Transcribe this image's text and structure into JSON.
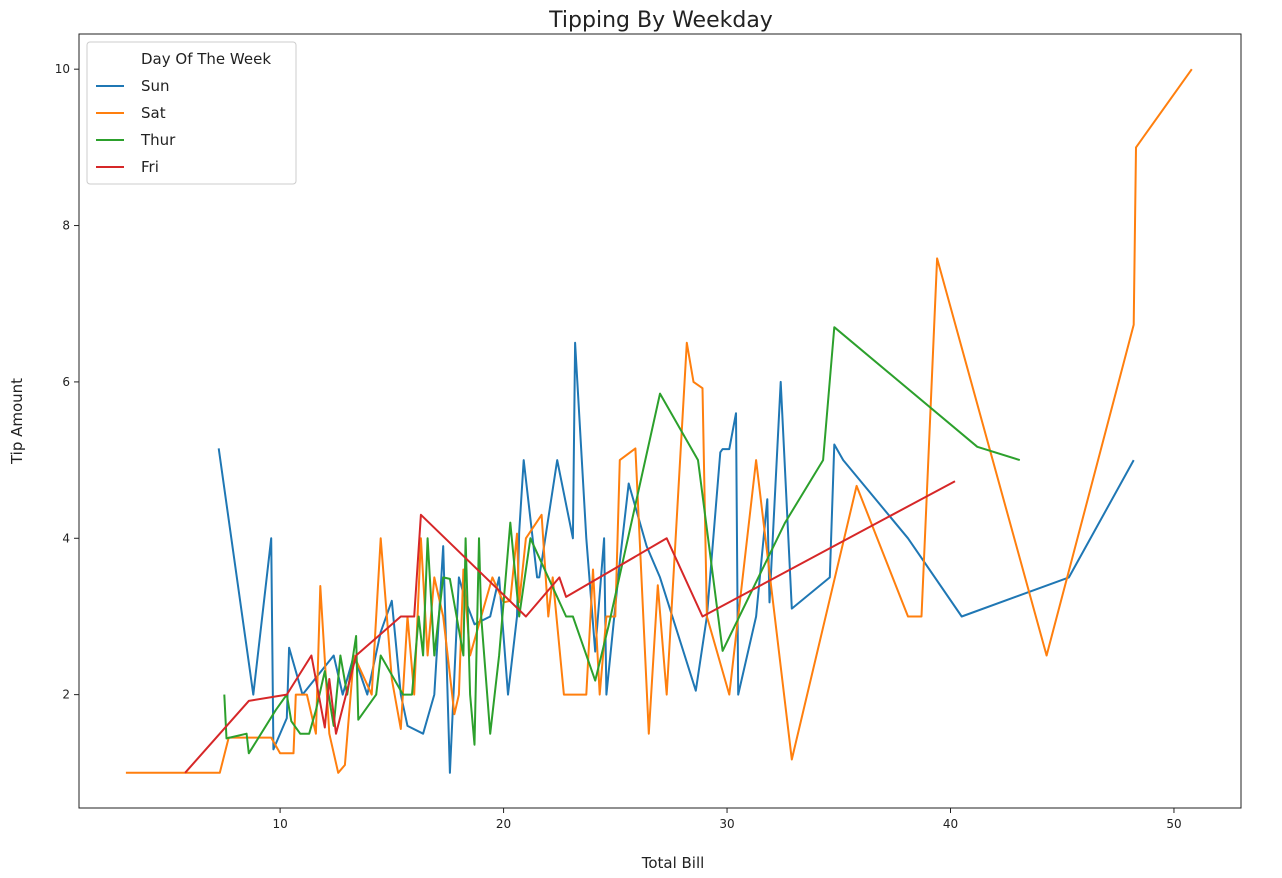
{
  "chart_data": {
    "type": "line",
    "title": "Tipping By Weekday",
    "xlabel": "Total Bill",
    "ylabel": "Tip Amount",
    "xlim": [
      1.0,
      53.0
    ],
    "ylim": [
      0.55,
      10.45
    ],
    "xticks": [
      10,
      20,
      30,
      40,
      50
    ],
    "yticks": [
      2,
      4,
      6,
      8,
      10
    ],
    "legend": {
      "title": "Day Of The Week",
      "placement": "top-left"
    },
    "series": [
      {
        "name": "Sun",
        "color": "#1f77b4",
        "x": [
          7.25,
          8.8,
          9.6,
          9.7,
          10.3,
          10.4,
          11.0,
          12.4,
          12.8,
          13.3,
          13.9,
          14.5,
          15.0,
          15.4,
          15.7,
          16.4,
          16.9,
          17.3,
          17.6,
          18.0,
          18.3,
          18.7,
          19.4,
          19.8,
          20.2,
          20.6,
          20.7,
          20.9,
          21.5,
          21.6,
          22.4,
          23.1,
          23.2,
          23.7,
          24.1,
          24.5,
          24.6,
          25.2,
          25.6,
          26.4,
          27.0,
          28.6,
          29.1,
          29.7,
          29.8,
          30.1,
          30.4,
          30.5,
          31.3,
          31.8,
          31.9,
          32.4,
          32.9,
          34.6,
          34.8,
          35.2,
          38.1,
          40.5,
          45.3,
          48.2
        ],
        "y": [
          5.15,
          2.0,
          4.0,
          1.3,
          1.7,
          2.6,
          2.0,
          2.5,
          2.0,
          2.5,
          2.0,
          2.8,
          3.2,
          2.0,
          1.6,
          1.5,
          2.0,
          3.9,
          1.0,
          3.5,
          3.2,
          2.9,
          3.0,
          3.5,
          2.0,
          3.0,
          4.08,
          5.0,
          3.5,
          3.5,
          5.0,
          4.0,
          6.5,
          4.0,
          2.55,
          4.0,
          2.0,
          3.7,
          4.7,
          3.9,
          3.5,
          2.05,
          3.0,
          5.1,
          5.14,
          5.14,
          5.6,
          2.0,
          3.0,
          4.5,
          3.18,
          6.0,
          3.1,
          3.5,
          5.2,
          5.0,
          4.0,
          3.0,
          3.5,
          5.0
        ]
      },
      {
        "name": "Sat",
        "color": "#ff7f0e",
        "x": [
          3.1,
          7.3,
          7.7,
          9.6,
          10.0,
          10.6,
          10.7,
          11.2,
          11.6,
          11.8,
          12.2,
          12.6,
          12.9,
          13.3,
          14.1,
          14.5,
          15.0,
          15.4,
          15.7,
          16.0,
          16.3,
          16.6,
          16.9,
          17.3,
          17.8,
          18.0,
          18.2,
          18.5,
          19.0,
          19.5,
          20.0,
          20.3,
          20.6,
          20.7,
          21.0,
          21.7,
          22.0,
          22.2,
          22.7,
          23.3,
          23.7,
          24.0,
          24.3,
          24.6,
          25.0,
          25.2,
          25.9,
          26.5,
          26.9,
          27.3,
          28.2,
          28.5,
          28.9,
          29.1,
          30.1,
          30.5,
          31.3,
          32.9,
          35.8,
          38.1,
          38.7,
          39.4,
          44.3,
          48.2,
          48.3,
          50.8
        ],
        "y": [
          1.0,
          1.0,
          1.45,
          1.45,
          1.25,
          1.25,
          2.0,
          2.0,
          1.5,
          3.39,
          1.5,
          1.0,
          1.1,
          2.5,
          2.0,
          4.0,
          2.2,
          1.56,
          3.0,
          2.0,
          4.0,
          2.5,
          3.5,
          3.0,
          1.75,
          2.0,
          3.6,
          2.5,
          3.0,
          3.5,
          3.18,
          3.2,
          4.06,
          3.18,
          4.0,
          4.3,
          3.0,
          3.5,
          2.0,
          2.0,
          2.0,
          3.6,
          2.0,
          3.0,
          3.0,
          5.0,
          5.15,
          1.5,
          3.4,
          2.0,
          6.5,
          6.0,
          5.92,
          3.0,
          2.0,
          3.0,
          5.0,
          1.17,
          4.67,
          3.0,
          3.0,
          7.58,
          2.5,
          6.73,
          9.0,
          10.0
        ]
      },
      {
        "name": "Thur",
        "color": "#2ca02c",
        "x": [
          7.5,
          7.6,
          8.5,
          8.6,
          9.8,
          10.3,
          10.5,
          10.9,
          11.3,
          11.6,
          12.0,
          12.4,
          12.7,
          13.0,
          13.4,
          13.5,
          14.3,
          14.5,
          15.5,
          15.9,
          16.2,
          16.4,
          16.6,
          16.9,
          17.3,
          17.6,
          17.9,
          18.2,
          18.3,
          18.5,
          18.7,
          18.9,
          19.0,
          19.4,
          19.8,
          20.3,
          20.7,
          21.2,
          22.8,
          23.1,
          24.1,
          24.7,
          27.0,
          28.7,
          29.8,
          32.6,
          34.3,
          34.8,
          41.2,
          43.1
        ],
        "y": [
          2.0,
          1.44,
          1.5,
          1.25,
          1.8,
          2.0,
          1.66,
          1.5,
          1.5,
          1.8,
          2.3,
          1.6,
          2.5,
          2.0,
          2.75,
          1.68,
          2.0,
          2.5,
          2.0,
          2.0,
          3.0,
          2.5,
          4.0,
          2.5,
          3.5,
          3.48,
          3.0,
          2.5,
          4.0,
          2.0,
          1.36,
          4.0,
          3.0,
          1.5,
          2.5,
          4.2,
          3.0,
          4.0,
          3.0,
          3.0,
          2.18,
          2.88,
          5.85,
          5.0,
          2.56,
          4.2,
          5.0,
          6.7,
          5.17,
          5.0
        ]
      },
      {
        "name": "Fri",
        "color": "#d62728",
        "x": [
          5.75,
          8.6,
          10.3,
          11.4,
          12.0,
          12.2,
          12.5,
          13.4,
          15.4,
          16.0,
          16.3,
          21.0,
          22.5,
          22.8,
          27.3,
          28.9,
          40.2
        ],
        "y": [
          1.0,
          1.92,
          2.0,
          2.5,
          1.58,
          2.2,
          1.5,
          2.5,
          3.0,
          3.0,
          4.3,
          3.0,
          3.5,
          3.25,
          4.0,
          3.0,
          4.73
        ]
      }
    ]
  }
}
